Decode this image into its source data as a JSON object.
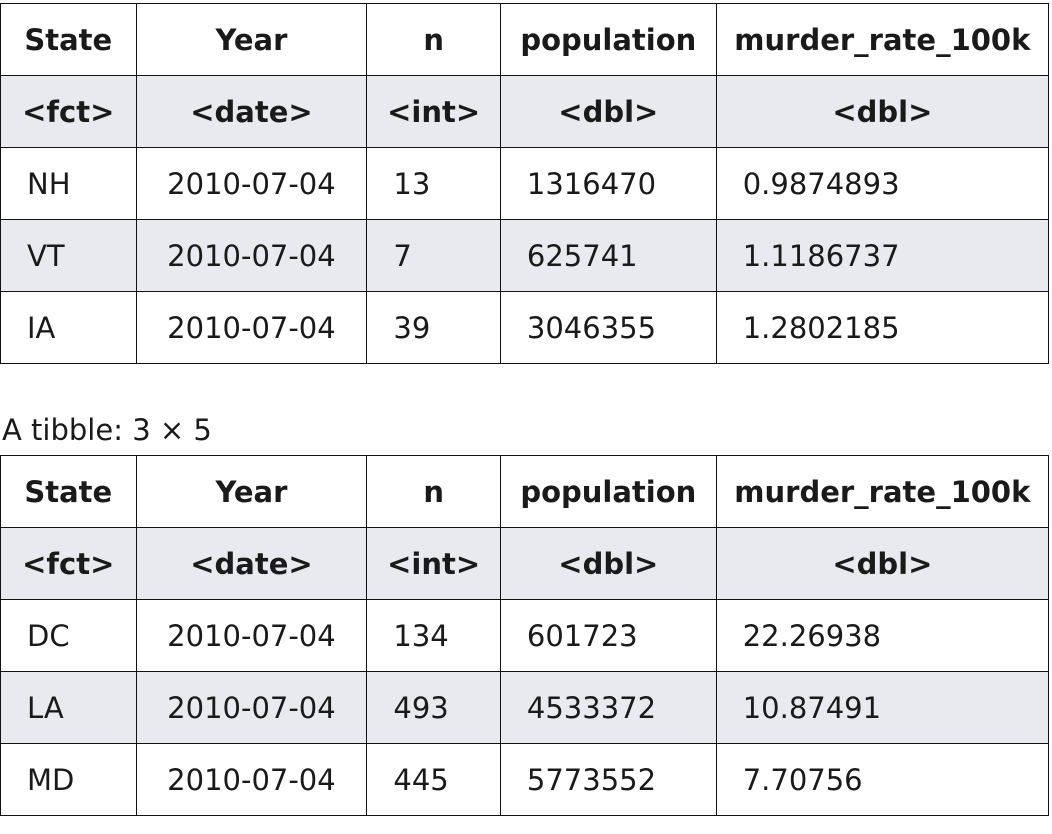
{
  "columns": [
    {
      "name": "State",
      "type": "<fct>"
    },
    {
      "name": "Year",
      "type": "<date>"
    },
    {
      "name": "n",
      "type": "<int>"
    },
    {
      "name": "population",
      "type": "<dbl>"
    },
    {
      "name": "murder_rate_100k",
      "type": "<dbl>"
    }
  ],
  "table1": {
    "rows": [
      [
        "NH",
        "2010-07-04",
        "13",
        "1316470",
        "0.9874893"
      ],
      [
        "VT",
        "2010-07-04",
        "7",
        "625741",
        "1.1186737"
      ],
      [
        "IA",
        "2010-07-04",
        "39",
        "3046355",
        "1.2802185"
      ]
    ]
  },
  "table2": {
    "caption": "A tibble: 3 × 5",
    "rows": [
      [
        "DC",
        "2010-07-04",
        "134",
        "601723",
        "22.26938"
      ],
      [
        "LA",
        "2010-07-04",
        "493",
        "4533372",
        "10.87491"
      ],
      [
        "MD",
        "2010-07-04",
        "445",
        "5773552",
        "7.70756"
      ]
    ]
  }
}
